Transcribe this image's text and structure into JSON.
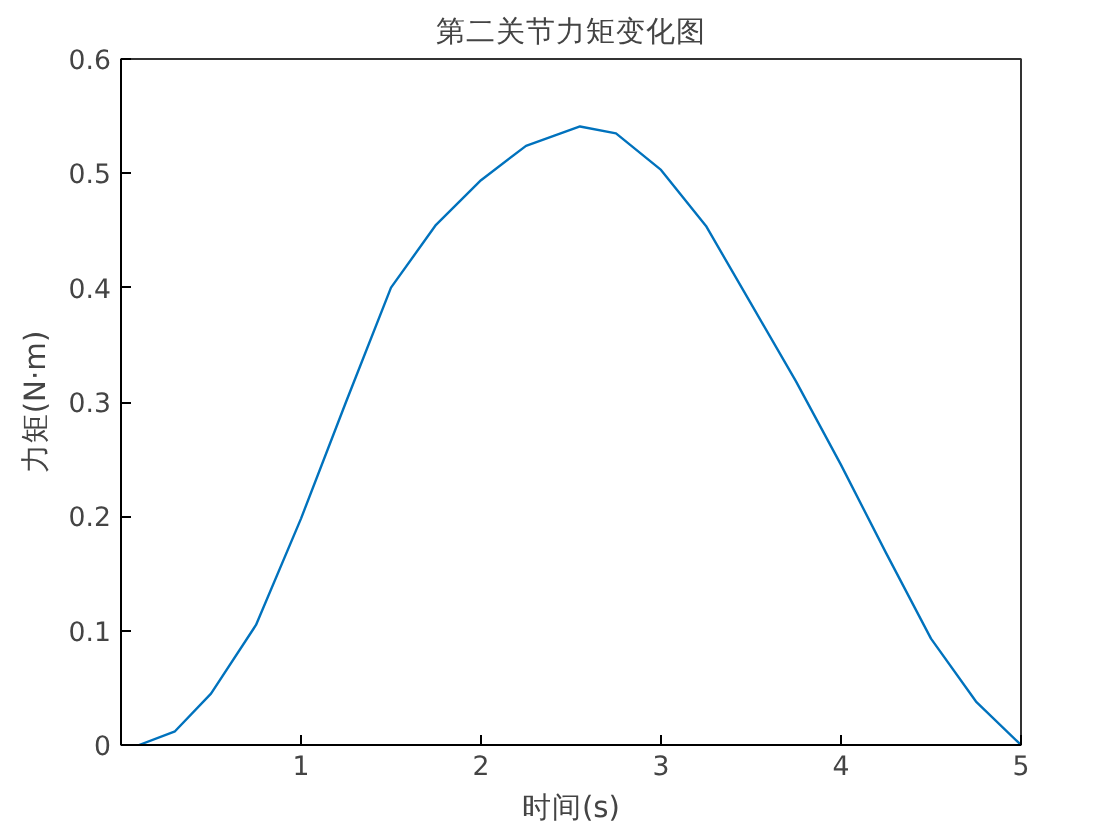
{
  "chart_data": {
    "type": "line",
    "title": "第二关节力矩变化图",
    "xlabel": "时间(s)",
    "ylabel": "力矩(N·m)",
    "xlim": [
      0,
      5
    ],
    "xticks": [
      1,
      2,
      3,
      4,
      5
    ],
    "ylim": [
      0,
      0.6
    ],
    "yticks": [
      0,
      0.1,
      0.2,
      0.3,
      0.4,
      0.5,
      0.6
    ],
    "grid": false,
    "x": [
      0.1,
      0.3,
      0.5,
      0.75,
      1,
      1.25,
      1.5,
      1.75,
      2,
      2.25,
      2.55,
      2.75,
      3,
      3.25,
      3.5,
      3.75,
      4,
      4.25,
      4.5,
      4.75,
      5
    ],
    "series": [
      {
        "color": "#0072bd",
        "values": [
          0,
          0.012,
          0.045,
          0.105,
          0.198,
          0.3,
          0.4,
          0.455,
          0.494,
          0.524,
          0.541,
          0.535,
          0.503,
          0.454,
          0.386,
          0.318,
          0.245,
          0.168,
          0.093,
          0.038,
          0
        ]
      }
    ]
  }
}
